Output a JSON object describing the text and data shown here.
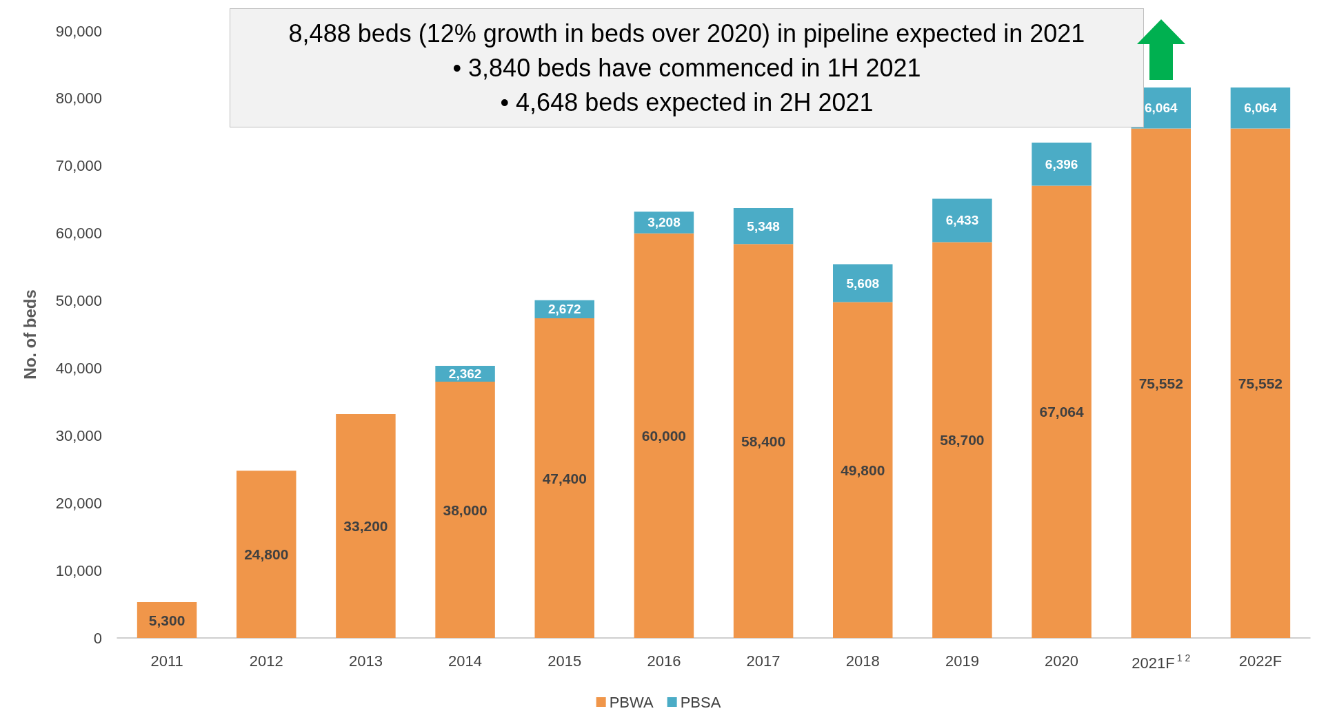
{
  "chart_data": {
    "type": "bar",
    "stacked": true,
    "ylabel": "No. of beds",
    "categories": [
      "2011",
      "2012",
      "2013",
      "2014",
      "2015",
      "2016",
      "2017",
      "2018",
      "2019",
      "2020",
      "2021F$^{1 2}$",
      "2022F"
    ],
    "series": [
      {
        "name": "PBWA",
        "color": "#f0964a",
        "values": [
          5300,
          24800,
          33200,
          38000,
          47400,
          60000,
          58400,
          49800,
          58700,
          67064,
          75552,
          75552
        ],
        "value_labels": [
          "5,300",
          "24,800",
          "33,200",
          "38,000",
          "47,400",
          "60,000",
          "58,400",
          "49,800",
          "58,700",
          "67,064",
          "75,552",
          "75,552"
        ]
      },
      {
        "name": "PBSA",
        "color": "#4bacc6",
        "values": [
          null,
          null,
          null,
          2362,
          2672,
          3208,
          5348,
          5608,
          6433,
          6396,
          6064,
          6064
        ],
        "value_labels": [
          null,
          null,
          null,
          "2,362",
          "2,672",
          "3,208",
          "5,348",
          "5,608",
          "6,433",
          "6,396",
          "6,064",
          "6,064"
        ]
      }
    ],
    "ylim": [
      0,
      90000
    ],
    "yticks": [
      {
        "value": 0,
        "label": "0"
      },
      {
        "value": 10000,
        "label": "10,000"
      },
      {
        "value": 20000,
        "label": "20,000"
      },
      {
        "value": 30000,
        "label": "30,000"
      },
      {
        "value": 40000,
        "label": "40,000"
      },
      {
        "value": 50000,
        "label": "50,000"
      },
      {
        "value": 60000,
        "label": "60,000"
      },
      {
        "value": 70000,
        "label": "70,000"
      },
      {
        "value": 80000,
        "label": "80,000"
      },
      {
        "value": 90000,
        "label": "90,000"
      }
    ],
    "grid": false,
    "legend": "bottom",
    "annotations": [
      "8,488 beds (12% growth in beds over 2020) in pipeline expected in 2021",
      "• 3,840 beds have commenced in 1H 2021",
      "• 4,648 beds expected in 2H 2021"
    ]
  }
}
